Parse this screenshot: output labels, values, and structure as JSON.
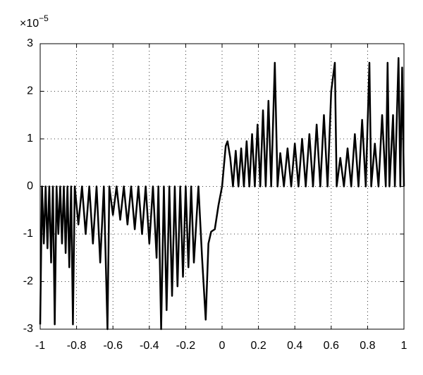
{
  "chart_data": {
    "type": "line",
    "axis_multiplier": {
      "base": "×10",
      "exponent": "−5"
    },
    "x": [
      -1,
      -0.99,
      -0.98,
      -0.97,
      -0.96,
      -0.95,
      -0.94,
      -0.93,
      -0.92,
      -0.91,
      -0.9,
      -0.89,
      -0.88,
      -0.87,
      -0.86,
      -0.85,
      -0.84,
      -0.83,
      -0.82,
      -0.81,
      -0.79,
      -0.77,
      -0.75,
      -0.73,
      -0.71,
      -0.69,
      -0.67,
      -0.65,
      -0.63,
      -0.62,
      -0.6,
      -0.58,
      -0.56,
      -0.54,
      -0.52,
      -0.5,
      -0.48,
      -0.46,
      -0.44,
      -0.42,
      -0.4,
      -0.38,
      -0.36,
      -0.35,
      -0.335,
      -0.32,
      -0.305,
      -0.29,
      -0.275,
      -0.26,
      -0.245,
      -0.23,
      -0.215,
      -0.2,
      -0.185,
      -0.17,
      -0.155,
      -0.13,
      -0.11,
      -0.09,
      -0.075,
      -0.06,
      -0.04,
      -0.02,
      0,
      0.02,
      0.03,
      0.045,
      0.06,
      0.075,
      0.09,
      0.105,
      0.12,
      0.135,
      0.15,
      0.165,
      0.18,
      0.195,
      0.21,
      0.225,
      0.24,
      0.255,
      0.27,
      0.29,
      0.305,
      0.32,
      0.34,
      0.36,
      0.38,
      0.4,
      0.42,
      0.44,
      0.46,
      0.48,
      0.5,
      0.52,
      0.54,
      0.56,
      0.58,
      0.6,
      0.62,
      0.63,
      0.65,
      0.67,
      0.69,
      0.71,
      0.73,
      0.75,
      0.77,
      0.79,
      0.81,
      0.82,
      0.84,
      0.86,
      0.88,
      0.9,
      0.91,
      0.92,
      0.94,
      0.95,
      0.97,
      0.98,
      0.99,
      1
    ],
    "series": [
      {
        "color": "#000000",
        "values": [
          -2.9,
          0,
          -1.2,
          0,
          -1.3,
          0,
          -1.6,
          0,
          -2.9,
          0,
          -1.0,
          0,
          -1.2,
          0,
          -1.4,
          0,
          -1.7,
          0,
          -2.9,
          0,
          -0.8,
          0,
          -1.0,
          0,
          -1.2,
          0,
          -1.6,
          0,
          -3,
          0,
          -0.6,
          0,
          -0.7,
          0,
          -0.8,
          0,
          -0.9,
          0,
          -1.0,
          0,
          -1.2,
          0,
          -1.5,
          0,
          -3,
          0,
          -2.6,
          0,
          -2.3,
          0,
          -2.1,
          0,
          -1.9,
          0,
          -1.7,
          0,
          -1.6,
          0,
          -1.5,
          -2.8,
          -1.2,
          -0.95,
          -0.9,
          -0.4,
          0,
          0.85,
          0.95,
          0.6,
          0,
          0.75,
          0,
          0.8,
          0,
          0.95,
          0,
          1.1,
          0,
          1.3,
          0,
          1.6,
          0,
          1.8,
          0,
          2.6,
          0,
          0.7,
          0,
          0.8,
          0,
          0.9,
          0,
          1.0,
          0,
          1.1,
          0,
          1.3,
          0,
          1.5,
          0,
          2.0,
          2.6,
          0,
          0.6,
          0,
          0.8,
          0,
          1.1,
          0,
          1.4,
          0,
          2.6,
          0,
          0.9,
          0,
          1.5,
          0,
          2.6,
          0,
          1.5,
          0,
          2.7,
          0,
          2.5,
          0
        ]
      }
    ],
    "xlim": [
      -1,
      1
    ],
    "ylim": [
      -3,
      3
    ],
    "xticks": [
      -1,
      -0.8,
      -0.6,
      -0.4,
      -0.2,
      0,
      0.2,
      0.4,
      0.6,
      0.8,
      1
    ],
    "yticks": [
      -3,
      -2,
      -1,
      0,
      1,
      2,
      3
    ],
    "grid": true
  }
}
